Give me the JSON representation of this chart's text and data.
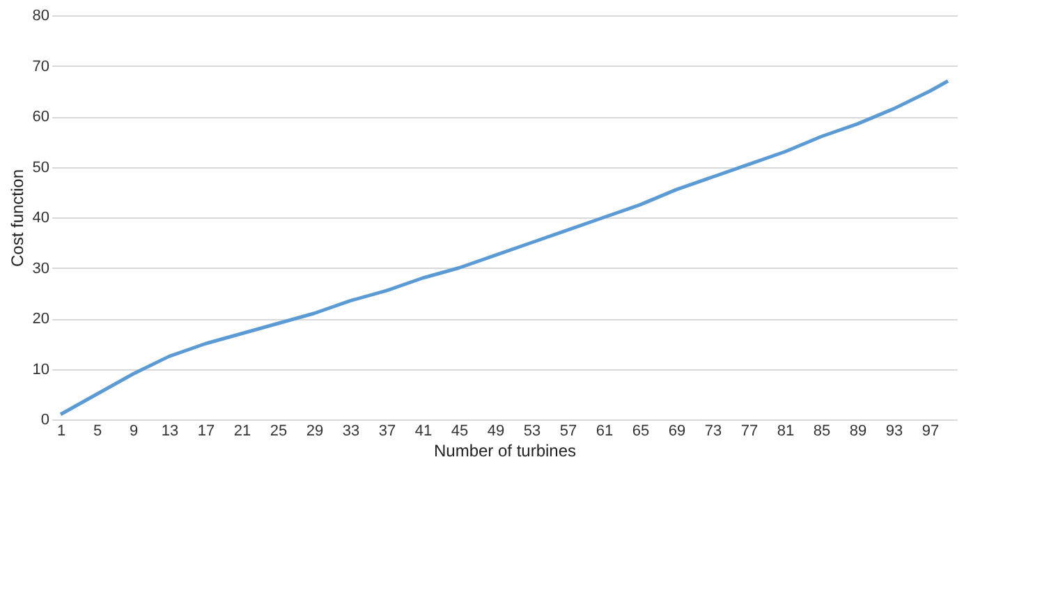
{
  "chart_data": {
    "type": "line",
    "xlabel": "Number of turbines",
    "ylabel": "Cost  function",
    "x": [
      1,
      5,
      9,
      13,
      17,
      21,
      25,
      29,
      33,
      37,
      41,
      45,
      49,
      53,
      57,
      61,
      65,
      69,
      73,
      77,
      81,
      85,
      89,
      93,
      97,
      99
    ],
    "series": [
      {
        "color": "#5b9bd5",
        "values": [
          1,
          5,
          9,
          12.5,
          15,
          17,
          19,
          21,
          23.5,
          25.5,
          28,
          30,
          32.5,
          35,
          37.5,
          40,
          42.5,
          45.5,
          48,
          50.5,
          53,
          56,
          58.5,
          61.5,
          65,
          67
        ]
      }
    ],
    "xlim": [
      0,
      100
    ],
    "xticks": [
      1,
      5,
      9,
      13,
      17,
      21,
      25,
      29,
      33,
      37,
      41,
      45,
      49,
      53,
      57,
      61,
      65,
      69,
      73,
      77,
      81,
      85,
      89,
      93,
      97
    ],
    "ylim": [
      0,
      80
    ],
    "yticks": [
      0,
      10,
      20,
      30,
      40,
      50,
      60,
      70,
      80
    ],
    "grid": "y",
    "marker": "none",
    "line_style": "solid"
  }
}
